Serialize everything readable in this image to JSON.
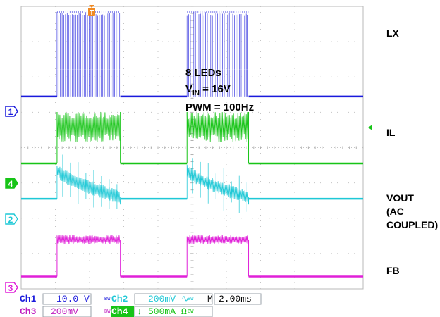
{
  "chart_data": {
    "type": "line",
    "title": "",
    "xlabel": "",
    "ylabel": "",
    "x_divisions": 10,
    "y_divisions": 8,
    "time_per_div_ms": 2.0,
    "xlim_ms": [
      0,
      20
    ],
    "grid": true,
    "pwm_on_windows_ms": [
      [
        2.1,
        5.8
      ],
      [
        9.7,
        13.3
      ]
    ],
    "series": [
      {
        "name": "LX",
        "channel": "1",
        "scale": "10.0 V",
        "color": "#1a1adc",
        "zero_div": 5.45,
        "values_volts": {
          "off": 0.0,
          "on_peak": 16.0
        }
      },
      {
        "name": "IL",
        "channel": "4",
        "scale": "500mA",
        "color": "#17c417",
        "zero_div": 3.55,
        "values_amps": {
          "off": 0.0,
          "on_peak": 1.0
        }
      },
      {
        "name": "VOUT",
        "channel": "2",
        "scale": "200mV",
        "color": "#1ec8d6",
        "zero_div": 2.55,
        "values_volts": {
          "off": 0.0,
          "on_start": 0.2,
          "on_end": 0.0
        }
      },
      {
        "name": "FB",
        "channel": "3",
        "scale": "200mV",
        "color": "#e020d8",
        "zero_div": 0.35,
        "values_volts": {
          "off": 0.0,
          "on": 0.2
        }
      }
    ]
  },
  "channel_markers": [
    {
      "id": "1",
      "color": "#1a1adc"
    },
    {
      "id": "4",
      "color": "#17c417"
    },
    {
      "id": "2",
      "color": "#1ec8d6"
    },
    {
      "id": "3",
      "color": "#e020d8"
    }
  ],
  "trigger_marker": "T",
  "trace_labels": [
    "LX",
    "IL",
    "VOUT",
    "(AC",
    "COUPLED)",
    "FB"
  ],
  "annotations": {
    "leds": "8 LEDs",
    "vin_prefix": "V",
    "vin_sub": "IN",
    "vin_suffix": " = 16V",
    "pwm": "PWM = 100Hz"
  },
  "status": {
    "ch1_label": "Ch1",
    "ch1_value": "10.0 V",
    "ch2_label": "Ch2",
    "ch2_value": "200mV",
    "ch2_coupling": "∿",
    "timebase_label": "M",
    "timebase_value": "2.00ms",
    "ch3_label": "Ch3",
    "ch3_value": "200mV",
    "ch4_label": "Ch4",
    "ch4_value": "500mA",
    "ch4_arrow": "↓",
    "ch4_unit": "Ω",
    "bw_mark": "BW"
  }
}
